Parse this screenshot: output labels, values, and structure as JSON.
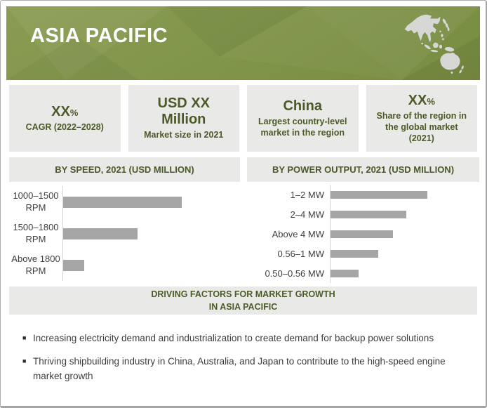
{
  "header": {
    "title": "ASIA PACIFIC",
    "bg_color": "#81954b",
    "title_color": "#ffffff",
    "map_icon_color": "#d7d7d5"
  },
  "stat_cards": [
    {
      "value": "XX",
      "suffix": "%",
      "label": "CAGR (2022–2028)"
    },
    {
      "value": "USD XX Million",
      "suffix": "",
      "label": "Market size in 2021"
    },
    {
      "value": "China",
      "suffix": "",
      "label": "Largest country-level market in the region"
    },
    {
      "value": "XX",
      "suffix": "%",
      "label": "Share of the region in the global market (2021)"
    }
  ],
  "chart_data": [
    {
      "type": "bar",
      "orientation": "horizontal",
      "title": "BY SPEED, 2021 (USD MILLION)",
      "categories": [
        "1000–1500 RPM",
        "1500–1800 RPM",
        "Above 1800 RPM"
      ],
      "values": [
        67,
        42,
        12
      ],
      "xlabel": "",
      "ylabel": "",
      "xlim": [
        0,
        100
      ],
      "grid": false,
      "legend": false,
      "bar_color": "#a6a6a6"
    },
    {
      "type": "bar",
      "orientation": "horizontal",
      "title": "BY POWER OUTPUT, 2021 (USD MILLION)",
      "categories": [
        "1–2 MW",
        "2–4 MW",
        "Above 4 MW",
        "0.56–1 MW",
        "0.50–0.56 MW"
      ],
      "values": [
        65,
        51,
        42,
        32,
        19
      ],
      "xlabel": "",
      "ylabel": "",
      "xlim": [
        0,
        100
      ],
      "grid": false,
      "legend": false,
      "bar_color": "#a6a6a6"
    }
  ],
  "driving_factors": {
    "heading_line1": "DRIVING FACTORS FOR MARKET GROWTH",
    "heading_line2": "IN ASIA PACIFIC",
    "bullets": [
      "Increasing electricity demand and industrialization to create demand for backup power solutions",
      "Thriving shipbuilding industry in China, Australia, and Japan to contribute to the high-speed engine market growth"
    ]
  },
  "colors": {
    "accent_olive": "#81954b",
    "dark_olive_text": "#4b5a28",
    "card_bg": "#e9e9e7",
    "bar_gray": "#a6a6a6",
    "axis_gray": "#d6d6d6",
    "body_text": "#3d3d3d"
  }
}
